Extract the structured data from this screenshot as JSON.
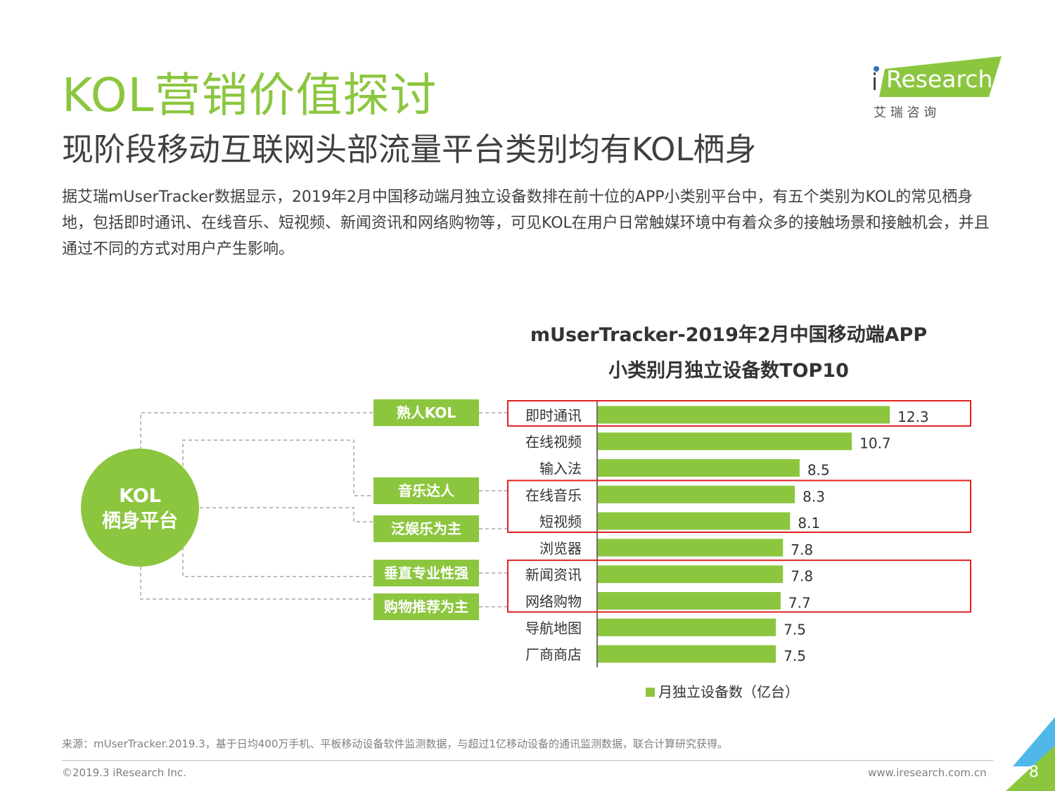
{
  "header": {
    "title": "KOL营销价值探讨",
    "subtitle": "现阶段移动互联网头部流量平台类别均有KOL栖身",
    "body": "据艾瑞mUserTracker数据显示，2019年2月中国移动端月独立设备数排在前十位的APP小类别平台中，有五个类别为KOL的常见栖身地，包括即时通讯、在线音乐、短视频、新闻资讯和网络购物等，可见KOL在用户日常触媒环境中有着众多的接触场景和接触机会，并且通过不同的方式对用户产生影响。"
  },
  "logo": {
    "i": "i",
    "word": "Research",
    "cn": "艾  瑞  咨  询",
    "brand_color": "#8cc63f"
  },
  "kol_diagram": {
    "center_line1": "KOL",
    "center_line2": "栖身平台",
    "boxes": [
      "熟人KOL",
      "音乐达人",
      "泛娱乐为主",
      "垂直专业性强",
      "购物推荐为主"
    ],
    "accent_color": "#8cc63f",
    "line_color": "#a6a6a6"
  },
  "chart_data": {
    "type": "bar",
    "orientation": "horizontal",
    "title_line1": "mUserTracker-2019年2月中国移动端APP",
    "title_line2": "小类别月独立设备数TOP10",
    "categories": [
      "即时通讯",
      "在线视频",
      "输入法",
      "在线音乐",
      "短视频",
      "浏览器",
      "新闻资讯",
      "网络购物",
      "导航地图",
      "厂商商店"
    ],
    "series": [
      {
        "name": "月独立设备数（亿台）",
        "values": [
          12.3,
          10.7,
          8.5,
          8.3,
          8.1,
          7.8,
          7.8,
          7.7,
          7.5,
          7.5
        ]
      }
    ],
    "xlim": [
      0,
      13.5
    ],
    "legend_position": "bottom",
    "grid": false,
    "bar_color": "#8cc63f",
    "highlight_color": "#e02020",
    "highlight_groups": [
      [
        "即时通讯"
      ],
      [
        "在线音乐",
        "短视频"
      ],
      [
        "新闻资讯",
        "网络购物"
      ]
    ]
  },
  "footer": {
    "source": "来源：mUserTracker.2019.3，基于日均400万手机、平板移动设备软件监测数据，与超过1亿移动设备的通讯监测数据，联合计算研究获得。",
    "copyright": "©2019.3 iResearch Inc.",
    "website": "www.iresearch.com.cn",
    "page_number": "8"
  }
}
